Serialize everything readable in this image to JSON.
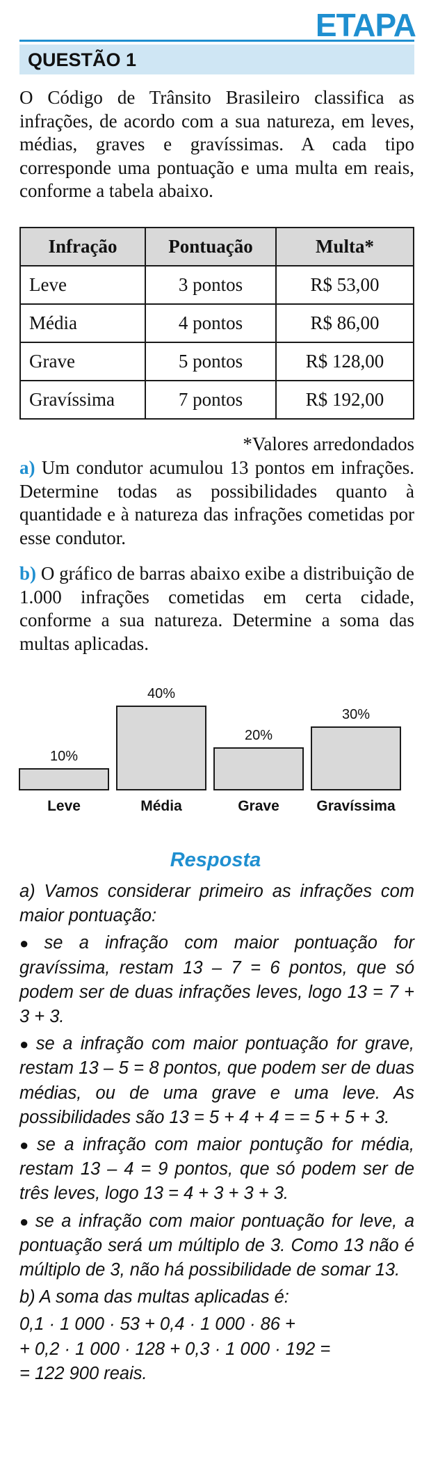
{
  "header": {
    "brand": "ETAPA",
    "question_title": "QUESTÃO 1"
  },
  "intro": "O Código de Trânsito Brasileiro classifica as infrações, de acordo com a sua natureza, em leves, médias, graves e gravíssimas. A cada tipo corresponde uma pontuação e uma multa em reais, conforme a tabela abaixo.",
  "table": {
    "headers": [
      "Infração",
      "Pontuação",
      "Multa*"
    ],
    "rows": [
      [
        "Leve",
        "3 pontos",
        "R$ 53,00"
      ],
      [
        "Média",
        "4 pontos",
        "R$ 86,00"
      ],
      [
        "Grave",
        "5 pontos",
        "R$ 128,00"
      ],
      [
        "Gravíssima",
        "7 pontos",
        "R$ 192,00"
      ]
    ],
    "note": "*Valores arredondados"
  },
  "part_a": {
    "label": "a)",
    "text": "Um condutor acumulou 13 pontos em infrações. Determine todas as possibilidades quanto à quantidade e à natureza das infrações cometidas por esse condutor."
  },
  "part_b": {
    "label": "b)",
    "text": "O gráfico de barras abaixo exibe a distribuição de 1.000 infrações cometidas em certa cidade, conforme a sua natureza. Determine a soma das multas aplicadas."
  },
  "chart_data": {
    "type": "bar",
    "categories": [
      "Leve",
      "Média",
      "Grave",
      "Gravíssima"
    ],
    "values": [
      10,
      40,
      20,
      30
    ],
    "value_labels": [
      "10%",
      "40%",
      "20%",
      "30%"
    ],
    "unit": "%",
    "grid": false,
    "bar_color": "#d9d9d9"
  },
  "answer": {
    "title": "Resposta",
    "lines": [
      "a) Vamos considerar primeiro as infrações com maior pontuação:",
      "se a infração com maior pontuação for gravíssima, restam 13 – 7 = 6 pontos, que só podem ser de duas infrações leves, logo 13 = 7 + 3 + 3.",
      "se a infração com maior pontuação for grave, restam 13 – 5 = 8 pontos, que podem ser de duas médias, ou de uma grave e uma leve. As possibilidades são 13 = 5 + 4 + 4 = = 5 + 5 + 3.",
      "se a infração com maior pontução for média, restam 13 – 4 = 9 pontos, que só podem ser de três leves, logo 13 = 4 + 3 + 3 + 3.",
      "se a infração com maior pontuação for leve, a pontuação será um múltiplo de 3. Como 13 não é múltiplo de 3, não há possibilidade de somar 13.",
      "b) A soma das multas aplicadas é:",
      "0,1 · 1 000 · 53 + 0,4 · 1 000 · 86 +",
      "+ 0,2 · 1 000 · 128 + 0,3 · 1 000 · 192 =",
      "= 122 900 reais."
    ],
    "bullet_symbol": "●"
  },
  "colors": {
    "accent": "#1f8fd0",
    "header_band": "#cfe6f4",
    "table_header": "#d9d9d9"
  }
}
